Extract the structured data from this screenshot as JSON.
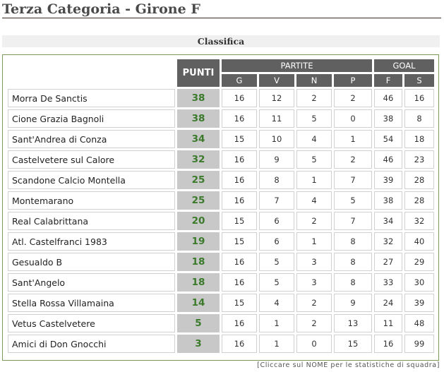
{
  "title": "Terza Categoria - Girone F",
  "section": "Classifica",
  "headers": {
    "punti": "PUNTI",
    "partite": "PARTITE",
    "goal": "GOAL",
    "g": "G",
    "v": "V",
    "n": "N",
    "p": "P",
    "f": "F",
    "s": "S"
  },
  "rows": [
    [
      "Morra De Sanctis",
      "38",
      "16",
      "12",
      "2",
      "2",
      "46",
      "16"
    ],
    [
      "Cione Grazia Bagnoli",
      "38",
      "16",
      "11",
      "5",
      "0",
      "38",
      "8"
    ],
    [
      "Sant'Andrea di Conza",
      "34",
      "15",
      "10",
      "4",
      "1",
      "54",
      "18"
    ],
    [
      "Castelvetere sul Calore",
      "32",
      "16",
      "9",
      "5",
      "2",
      "46",
      "23"
    ],
    [
      "Scandone Calcio Montella",
      "25",
      "16",
      "8",
      "1",
      "7",
      "39",
      "28"
    ],
    [
      "Montemarano",
      "25",
      "16",
      "7",
      "4",
      "5",
      "38",
      "28"
    ],
    [
      "Real Calabrittana",
      "20",
      "15",
      "6",
      "2",
      "7",
      "34",
      "32"
    ],
    [
      "Atl. Castelfranci 1983",
      "19",
      "15",
      "6",
      "1",
      "8",
      "32",
      "40"
    ],
    [
      "Gesualdo B",
      "18",
      "16",
      "5",
      "3",
      "8",
      "27",
      "29"
    ],
    [
      "Sant'Angelo",
      "18",
      "16",
      "5",
      "3",
      "8",
      "33",
      "30"
    ],
    [
      "Stella Rossa Villamaina",
      "14",
      "15",
      "4",
      "2",
      "9",
      "24",
      "39"
    ],
    [
      "Vetus Castelvetere",
      "5",
      "16",
      "1",
      "2",
      "13",
      "11",
      "48"
    ],
    [
      "Amici di Don Gnocchi",
      "3",
      "16",
      "1",
      "0",
      "15",
      "16",
      "99"
    ]
  ],
  "note": "[Cliccare sul NOME per le statistiche di squadra]",
  "colors": {
    "points": "#3a7a2a",
    "header": "#606060",
    "border": "#7a9a5a"
  }
}
